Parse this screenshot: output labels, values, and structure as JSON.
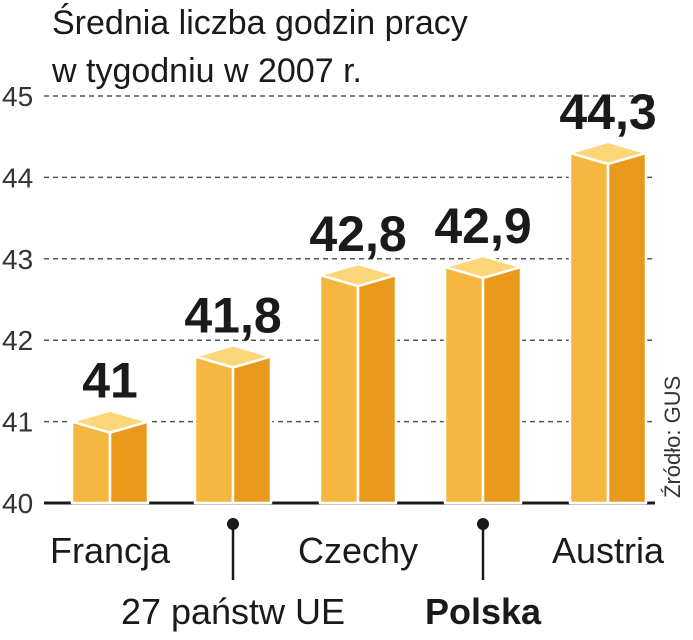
{
  "chart_data": {
    "type": "bar",
    "title_line1": "Średnia liczba godzin pracy",
    "title_line2": "w tygodniu w 2007 r.",
    "categories": [
      "Francja",
      "27 państw UE",
      "Czechy",
      "Polska",
      "Austria"
    ],
    "values": [
      41,
      41.8,
      42.8,
      42.9,
      44.3
    ],
    "value_labels": [
      "41",
      "41,8",
      "42,8",
      "42,9",
      "44,3"
    ],
    "ylim": [
      40,
      45
    ],
    "yticks": [
      "40",
      "41",
      "42",
      "43",
      "44",
      "45"
    ],
    "grid": true,
    "highlight_category": "Polska",
    "source": "Źródło: GUS",
    "colors": {
      "bar_front": "#f5b73f",
      "bar_side": "#e99a1c",
      "bar_top": "#fcd678",
      "highlight_label": "#c8102e",
      "label": "#1a1a1a",
      "grid": "#555555"
    }
  }
}
